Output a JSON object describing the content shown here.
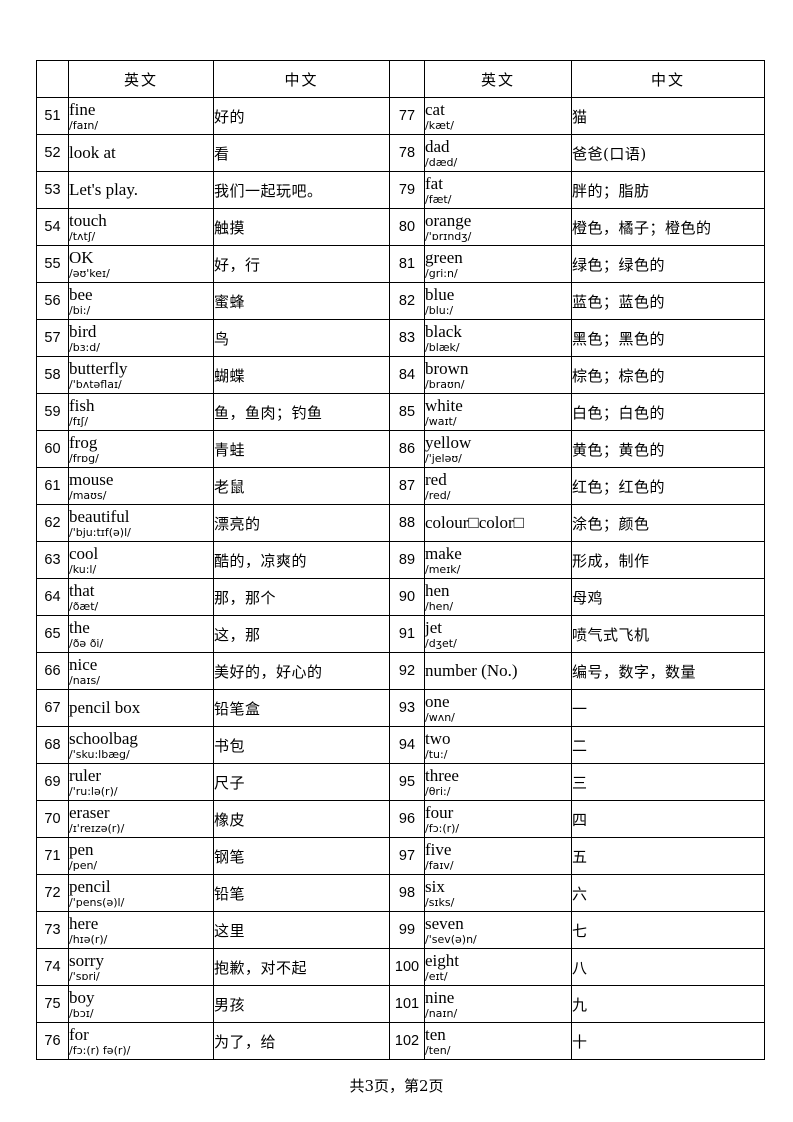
{
  "page": {
    "footer": "共3页，第2页"
  },
  "table": {
    "header": {
      "num": "",
      "en": "英文",
      "zh": "中文"
    },
    "rows": [
      {
        "left": {
          "num": "51",
          "word": "fine",
          "phonetic": "/faɪn/",
          "zh": "好的"
        },
        "right": {
          "num": "77",
          "word": "cat",
          "phonetic": "/kæt/",
          "zh": "猫"
        }
      },
      {
        "left": {
          "num": "52",
          "word": "look at",
          "phonetic": "",
          "zh": "看"
        },
        "right": {
          "num": "78",
          "word": "dad",
          "phonetic": "/dæd/",
          "zh": "爸爸(口语)"
        }
      },
      {
        "left": {
          "num": "53",
          "word": "Let's play.",
          "phonetic": "",
          "zh": "我们一起玩吧。"
        },
        "right": {
          "num": "79",
          "word": "fat",
          "phonetic": "/fæt/",
          "zh": "胖的；脂肪"
        }
      },
      {
        "left": {
          "num": "54",
          "word": "touch",
          "phonetic": "/tʌtʃ/",
          "zh": "触摸"
        },
        "right": {
          "num": "80",
          "word": "orange",
          "phonetic": "/'ɒrɪndʒ/",
          "zh": "橙色，橘子；橙色的"
        }
      },
      {
        "left": {
          "num": "55",
          "word": "OK",
          "phonetic": "/əʊ'keɪ/",
          "zh": "好，行"
        },
        "right": {
          "num": "81",
          "word": "green",
          "phonetic": "/gri:n/",
          "zh": "绿色；绿色的"
        }
      },
      {
        "left": {
          "num": "56",
          "word": "bee",
          "phonetic": "/bi:/",
          "zh": "蜜蜂"
        },
        "right": {
          "num": "82",
          "word": "blue",
          "phonetic": "/blu:/",
          "zh": "蓝色；蓝色的"
        }
      },
      {
        "left": {
          "num": "57",
          "word": "bird",
          "phonetic": "/bɜ:d/",
          "zh": "鸟"
        },
        "right": {
          "num": "83",
          "word": "black",
          "phonetic": "/blæk/",
          "zh": "黑色；黑色的"
        }
      },
      {
        "left": {
          "num": "58",
          "word": "butterfly",
          "phonetic": "/'bʌtəflaɪ/",
          "zh": "蝴蝶"
        },
        "right": {
          "num": "84",
          "word": "brown",
          "phonetic": "/braʊn/",
          "zh": "棕色；棕色的"
        }
      },
      {
        "left": {
          "num": "59",
          "word": "fish",
          "phonetic": "/fɪʃ/",
          "zh": "鱼，鱼肉；钓鱼"
        },
        "right": {
          "num": "85",
          "word": "white",
          "phonetic": "/waɪt/",
          "zh": "白色；白色的"
        }
      },
      {
        "left": {
          "num": "60",
          "word": "frog",
          "phonetic": "/frɒg/",
          "zh": "青蛙"
        },
        "right": {
          "num": "86",
          "word": "yellow",
          "phonetic": "/'jeləʊ/",
          "zh": "黄色；黄色的"
        }
      },
      {
        "left": {
          "num": "61",
          "word": "mouse",
          "phonetic": "/maʊs/",
          "zh": "老鼠"
        },
        "right": {
          "num": "87",
          "word": "red",
          "phonetic": "/red/",
          "zh": "红色；红色的"
        }
      },
      {
        "left": {
          "num": "62",
          "word": "beautiful",
          "phonetic": "/'bju:tɪf(ə)l/",
          "zh": "漂亮的"
        },
        "right": {
          "num": "88",
          "word": "colour□color□",
          "phonetic": "",
          "zh": "涂色；颜色"
        }
      },
      {
        "left": {
          "num": "63",
          "word": "cool",
          "phonetic": "/ku:l/",
          "zh": "酷的，凉爽的"
        },
        "right": {
          "num": "89",
          "word": "make",
          "phonetic": "/meɪk/",
          "zh": "形成，制作"
        }
      },
      {
        "left": {
          "num": "64",
          "word": "that",
          "phonetic": "/ðæt/",
          "zh": "那，那个"
        },
        "right": {
          "num": "90",
          "word": "hen",
          "phonetic": "/hen/",
          "zh": "母鸡"
        }
      },
      {
        "left": {
          "num": "65",
          "word": "the",
          "phonetic": "/ðə ði/",
          "zh": "这，那"
        },
        "right": {
          "num": "91",
          "word": "jet",
          "phonetic": "/dʒet/",
          "zh": "喷气式飞机"
        }
      },
      {
        "left": {
          "num": "66",
          "word": "nice",
          "phonetic": "/naɪs/",
          "zh": "美好的，好心的"
        },
        "right": {
          "num": "92",
          "word": "number (No.)",
          "phonetic": "",
          "zh": "编号，数字，数量"
        }
      },
      {
        "left": {
          "num": "67",
          "word": "pencil box",
          "phonetic": "",
          "zh": "铅笔盒"
        },
        "right": {
          "num": "93",
          "word": "one",
          "phonetic": "/wʌn/",
          "zh": "一"
        }
      },
      {
        "left": {
          "num": "68",
          "word": "schoolbag",
          "phonetic": "/'sku:lbæg/",
          "zh": "书包"
        },
        "right": {
          "num": "94",
          "word": "two",
          "phonetic": "/tu:/",
          "zh": "二"
        }
      },
      {
        "left": {
          "num": "69",
          "word": "ruler",
          "phonetic": "/'ru:lə(r)/",
          "zh": "尺子"
        },
        "right": {
          "num": "95",
          "word": "three",
          "phonetic": "/θri:/",
          "zh": "三"
        }
      },
      {
        "left": {
          "num": "70",
          "word": "eraser",
          "phonetic": "/ɪ'reɪzə(r)/",
          "zh": "橡皮"
        },
        "right": {
          "num": "96",
          "word": "four",
          "phonetic": "/fɔ:(r)/",
          "zh": "四"
        }
      },
      {
        "left": {
          "num": "71",
          "word": "pen",
          "phonetic": "/pen/",
          "zh": "钢笔"
        },
        "right": {
          "num": "97",
          "word": "five",
          "phonetic": "/faɪv/",
          "zh": "五"
        }
      },
      {
        "left": {
          "num": "72",
          "word": "pencil",
          "phonetic": "/'pens(ə)l/",
          "zh": "铅笔"
        },
        "right": {
          "num": "98",
          "word": "six",
          "phonetic": "/sɪks/",
          "zh": "六"
        }
      },
      {
        "left": {
          "num": "73",
          "word": "here",
          "phonetic": "/hɪə(r)/",
          "zh": "这里"
        },
        "right": {
          "num": "99",
          "word": "seven",
          "phonetic": "/'sev(ə)n/",
          "zh": "七"
        }
      },
      {
        "left": {
          "num": "74",
          "word": "sorry",
          "phonetic": "/'sɒri/",
          "zh": "抱歉，对不起"
        },
        "right": {
          "num": "100",
          "word": "eight",
          "phonetic": "/eɪt/",
          "zh": "八"
        }
      },
      {
        "left": {
          "num": "75",
          "word": "boy",
          "phonetic": "/bɔɪ/",
          "zh": "男孩"
        },
        "right": {
          "num": "101",
          "word": "nine",
          "phonetic": "/naɪn/",
          "zh": "九"
        }
      },
      {
        "left": {
          "num": "76",
          "word": "for",
          "phonetic": "/fɔ:(r) fə(r)/",
          "zh": "为了，给"
        },
        "right": {
          "num": "102",
          "word": "ten",
          "phonetic": "/ten/",
          "zh": "十"
        }
      }
    ]
  }
}
